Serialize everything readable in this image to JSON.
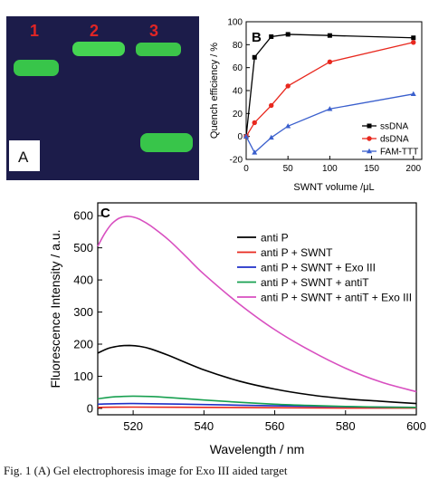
{
  "panel_a": {
    "panel_label": "A",
    "lane_labels": [
      "1",
      "2",
      "3"
    ],
    "colors": {
      "background": "#1c1c4a",
      "band": "#3cd84a",
      "lane_label": "#e02525"
    }
  },
  "chart_data": [
    {
      "type": "line",
      "panel_label": "B",
      "xlabel": "SWNT volume /μL",
      "ylabel": "Quench efficiency / %",
      "xlim": [
        0,
        210
      ],
      "ylim": [
        -20,
        100
      ],
      "xticks": [
        0,
        50,
        100,
        150,
        200
      ],
      "yticks": [
        -20,
        0,
        20,
        40,
        60,
        80,
        100
      ],
      "legend_position": "bottom-right",
      "series": [
        {
          "name": "ssDNA",
          "color": "#000000",
          "marker": "square",
          "x": [
            0,
            10,
            30,
            50,
            100,
            200
          ],
          "y": [
            0,
            69,
            87,
            89,
            88,
            86
          ]
        },
        {
          "name": "dsDNA",
          "color": "#e8281e",
          "marker": "circle",
          "x": [
            0,
            10,
            30,
            50,
            100,
            200
          ],
          "y": [
            0,
            12,
            27,
            44,
            65,
            82
          ]
        },
        {
          "name": "FAM-TTT",
          "color": "#3a5fcd",
          "marker": "triangle",
          "x": [
            0,
            10,
            30,
            50,
            100,
            200
          ],
          "y": [
            0,
            -14,
            -1,
            9,
            24,
            37
          ]
        }
      ]
    },
    {
      "type": "line",
      "panel_label": "C",
      "xlabel": "Wavelength / nm",
      "ylabel": "Fluorescence Intensity / a.u.",
      "xlim": [
        510,
        600
      ],
      "ylim": [
        -20,
        640
      ],
      "xticks": [
        520,
        540,
        560,
        580,
        600
      ],
      "yticks": [
        0,
        100,
        200,
        300,
        400,
        500,
        600
      ],
      "legend_position": "top-right",
      "series": [
        {
          "name": "anti P",
          "color": "#000000",
          "x": [
            510,
            513,
            516,
            519,
            522,
            525,
            530,
            540,
            550,
            560,
            570,
            580,
            590,
            600
          ],
          "y": [
            172,
            187,
            194,
            196,
            193,
            185,
            165,
            120,
            85,
            60,
            42,
            30,
            22,
            15
          ]
        },
        {
          "name": "anti P + SWNT",
          "color": "#e8281e",
          "x": [
            510,
            520,
            540,
            560,
            580,
            600
          ],
          "y": [
            3,
            4,
            3,
            2,
            1,
            1
          ]
        },
        {
          "name": "anti P + SWNT  + Exo III",
          "color": "#1f2fc8",
          "x": [
            510,
            520,
            540,
            560,
            580,
            600
          ],
          "y": [
            13,
            15,
            12,
            8,
            5,
            3
          ]
        },
        {
          "name": "anti P + SWNT  + antiT",
          "color": "#18a050",
          "x": [
            510,
            515,
            520,
            525,
            530,
            540,
            550,
            560,
            570,
            580,
            590,
            600
          ],
          "y": [
            30,
            36,
            38,
            37,
            34,
            26,
            19,
            13,
            9,
            6,
            4,
            3
          ]
        },
        {
          "name": "anti P + SWNT  + antiT + Exo III",
          "color": "#d84fc0",
          "x": [
            510,
            512,
            514,
            516,
            518,
            520,
            522,
            525,
            530,
            535,
            540,
            550,
            560,
            570,
            580,
            590,
            600
          ],
          "y": [
            505,
            545,
            575,
            592,
            598,
            596,
            588,
            568,
            525,
            472,
            418,
            325,
            245,
            180,
            125,
            82,
            52
          ]
        }
      ]
    }
  ],
  "caption": {
    "text": "Fig. 1  (A) Gel electrophoresis image for Exo III aided target"
  }
}
